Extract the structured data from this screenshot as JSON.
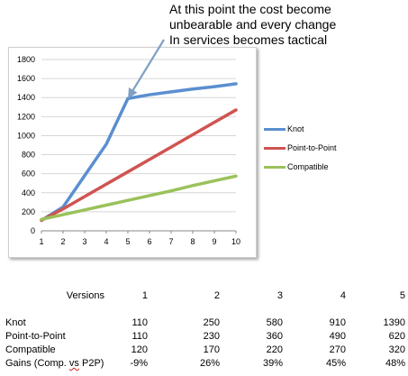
{
  "annotation": "At this point the cost become\nunbearable and every change\nIn services becomes tactical",
  "chart_data": {
    "type": "line",
    "x": [
      1,
      2,
      3,
      4,
      5,
      6,
      7,
      8,
      9,
      10
    ],
    "y_ticks": [
      0,
      200,
      400,
      600,
      800,
      1000,
      1200,
      1400,
      1600,
      1800
    ],
    "ylim": [
      0,
      1800
    ],
    "xlim": [
      1,
      10
    ],
    "grid": true,
    "legend_position": "right",
    "series": [
      {
        "name": "Knot",
        "color": "#5a8fd0",
        "values": [
          110,
          250,
          580,
          910,
          1390,
          1430,
          1460,
          1490,
          1515,
          1545
        ]
      },
      {
        "name": "Point-to-Point",
        "color": "#cf5450",
        "values": [
          110,
          230,
          360,
          490,
          620,
          750,
          880,
          1010,
          1140,
          1270
        ]
      },
      {
        "name": "Compatible",
        "color": "#9ac25b",
        "values": [
          120,
          170,
          220,
          270,
          320,
          370,
          420,
          475,
          525,
          575
        ]
      }
    ],
    "annotation_target": {
      "x": 5,
      "y": 1390
    }
  },
  "table": {
    "header_label": "Versions",
    "columns": [
      "1",
      "2",
      "3",
      "4",
      "5"
    ],
    "rows": [
      {
        "label": "Knot",
        "values": [
          "110",
          "250",
          "580",
          "910",
          "1390"
        ]
      },
      {
        "label": "Point-to-Point",
        "values": [
          "110",
          "230",
          "360",
          "490",
          "620"
        ]
      },
      {
        "label": "Compatible",
        "values": [
          "120",
          "170",
          "220",
          "270",
          "320"
        ]
      }
    ],
    "gains": {
      "label_prefix": "Gains (Comp. ",
      "label_vs": "vs",
      "label_mid": " ",
      "label_p2p": "P2P",
      "label_suffix": ")",
      "values": [
        "-9%",
        "26%",
        "39%",
        "45%",
        "48%"
      ]
    }
  }
}
